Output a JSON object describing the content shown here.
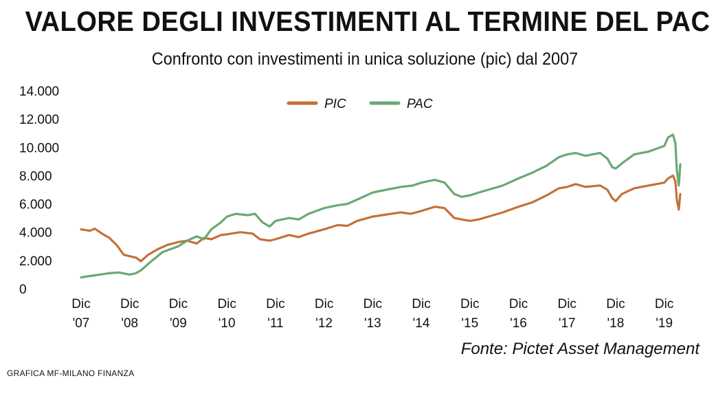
{
  "title": "VALORE DEGLI INVESTIMENTI AL TERMINE DEL PAC",
  "subtitle": "Confronto con investimenti in unica soluzione (pic) dal 2007",
  "source": "Fonte: Pictet Asset Management",
  "credit": "GRAFICA MF-MILANO FINANZA",
  "colors": {
    "PIC": "#c4703a",
    "PAC": "#6aa873"
  },
  "chart_data": {
    "type": "line",
    "title": "VALORE DEGLI INVESTIMENTI AL TERMINE DEL PAC",
    "subtitle": "Confronto con investimenti in unica soluzione (pic) dal 2007",
    "xlabel": "",
    "ylabel": "",
    "ylim": [
      0,
      14000
    ],
    "y_ticks": [
      0,
      2000,
      4000,
      6000,
      8000,
      10000,
      12000,
      14000
    ],
    "y_tick_labels": [
      "0",
      "2.000",
      "4.000",
      "6.000",
      "8.000",
      "10.000",
      "12.000",
      "14.000"
    ],
    "x_range": [
      2007.92,
      2020.25
    ],
    "x_ticks": [
      {
        "x": 2007.92,
        "label": [
          "Dic",
          "'07"
        ]
      },
      {
        "x": 2008.92,
        "label": [
          "Dic",
          "'08"
        ]
      },
      {
        "x": 2009.92,
        "label": [
          "Dic",
          "'09"
        ]
      },
      {
        "x": 2010.92,
        "label": [
          "Dic",
          "'10"
        ]
      },
      {
        "x": 2011.92,
        "label": [
          "Dic",
          "'11"
        ]
      },
      {
        "x": 2012.92,
        "label": [
          "Dic",
          "'12"
        ]
      },
      {
        "x": 2013.92,
        "label": [
          "Dic",
          "'13"
        ]
      },
      {
        "x": 2014.92,
        "label": [
          "Dic",
          "'14"
        ]
      },
      {
        "x": 2015.92,
        "label": [
          "Dic",
          "'15"
        ]
      },
      {
        "x": 2016.92,
        "label": [
          "Dic",
          "'16"
        ]
      },
      {
        "x": 2017.92,
        "label": [
          "Dic",
          "'17"
        ]
      },
      {
        "x": 2018.92,
        "label": [
          "Dic",
          "'18"
        ]
      },
      {
        "x": 2019.92,
        "label": [
          "Dic",
          "'19"
        ]
      }
    ],
    "legend": "top-center",
    "grid": false,
    "series": [
      {
        "name": "PIC",
        "color": "#c4703a",
        "points": [
          [
            2007.92,
            4200
          ],
          [
            2008.1,
            4100
          ],
          [
            2008.2,
            4250
          ],
          [
            2008.35,
            3900
          ],
          [
            2008.5,
            3600
          ],
          [
            2008.65,
            3100
          ],
          [
            2008.8,
            2400
          ],
          [
            2008.92,
            2300
          ],
          [
            2009.05,
            2200
          ],
          [
            2009.15,
            1950
          ],
          [
            2009.3,
            2400
          ],
          [
            2009.5,
            2800
          ],
          [
            2009.7,
            3100
          ],
          [
            2009.92,
            3300
          ],
          [
            2010.1,
            3400
          ],
          [
            2010.3,
            3200
          ],
          [
            2010.45,
            3600
          ],
          [
            2010.6,
            3500
          ],
          [
            2010.8,
            3800
          ],
          [
            2010.92,
            3850
          ],
          [
            2011.2,
            4000
          ],
          [
            2011.45,
            3900
          ],
          [
            2011.6,
            3500
          ],
          [
            2011.8,
            3400
          ],
          [
            2011.92,
            3500
          ],
          [
            2012.2,
            3800
          ],
          [
            2012.4,
            3650
          ],
          [
            2012.6,
            3900
          ],
          [
            2012.92,
            4200
          ],
          [
            2013.2,
            4500
          ],
          [
            2013.4,
            4450
          ],
          [
            2013.6,
            4800
          ],
          [
            2013.92,
            5100
          ],
          [
            2014.2,
            5250
          ],
          [
            2014.5,
            5400
          ],
          [
            2014.7,
            5300
          ],
          [
            2014.92,
            5500
          ],
          [
            2015.2,
            5800
          ],
          [
            2015.4,
            5700
          ],
          [
            2015.6,
            5000
          ],
          [
            2015.75,
            4900
          ],
          [
            2015.92,
            4800
          ],
          [
            2016.1,
            4900
          ],
          [
            2016.3,
            5100
          ],
          [
            2016.6,
            5400
          ],
          [
            2016.92,
            5800
          ],
          [
            2017.2,
            6100
          ],
          [
            2017.5,
            6600
          ],
          [
            2017.75,
            7100
          ],
          [
            2017.92,
            7200
          ],
          [
            2018.1,
            7400
          ],
          [
            2018.3,
            7200
          ],
          [
            2018.6,
            7300
          ],
          [
            2018.75,
            7000
          ],
          [
            2018.85,
            6400
          ],
          [
            2018.92,
            6200
          ],
          [
            2019.05,
            6700
          ],
          [
            2019.3,
            7100
          ],
          [
            2019.6,
            7300
          ],
          [
            2019.92,
            7500
          ],
          [
            2020.0,
            7800
          ],
          [
            2020.1,
            8000
          ],
          [
            2020.15,
            7600
          ],
          [
            2020.18,
            6300
          ],
          [
            2020.22,
            5600
          ],
          [
            2020.25,
            6700
          ]
        ]
      },
      {
        "name": "PAC",
        "color": "#6aa873",
        "points": [
          [
            2007.92,
            800
          ],
          [
            2008.1,
            900
          ],
          [
            2008.3,
            1000
          ],
          [
            2008.5,
            1100
          ],
          [
            2008.7,
            1150
          ],
          [
            2008.92,
            1000
          ],
          [
            2009.05,
            1100
          ],
          [
            2009.15,
            1300
          ],
          [
            2009.35,
            1900
          ],
          [
            2009.6,
            2600
          ],
          [
            2009.92,
            3000
          ],
          [
            2010.1,
            3400
          ],
          [
            2010.3,
            3700
          ],
          [
            2010.45,
            3500
          ],
          [
            2010.6,
            4200
          ],
          [
            2010.8,
            4700
          ],
          [
            2010.92,
            5100
          ],
          [
            2011.1,
            5300
          ],
          [
            2011.35,
            5200
          ],
          [
            2011.5,
            5300
          ],
          [
            2011.65,
            4700
          ],
          [
            2011.8,
            4400
          ],
          [
            2011.92,
            4800
          ],
          [
            2012.2,
            5000
          ],
          [
            2012.4,
            4900
          ],
          [
            2012.6,
            5300
          ],
          [
            2012.92,
            5700
          ],
          [
            2013.2,
            5900
          ],
          [
            2013.4,
            6000
          ],
          [
            2013.6,
            6300
          ],
          [
            2013.92,
            6800
          ],
          [
            2014.2,
            7000
          ],
          [
            2014.5,
            7200
          ],
          [
            2014.75,
            7300
          ],
          [
            2014.92,
            7500
          ],
          [
            2015.2,
            7700
          ],
          [
            2015.4,
            7500
          ],
          [
            2015.6,
            6700
          ],
          [
            2015.75,
            6500
          ],
          [
            2015.92,
            6600
          ],
          [
            2016.1,
            6800
          ],
          [
            2016.3,
            7000
          ],
          [
            2016.6,
            7300
          ],
          [
            2016.92,
            7800
          ],
          [
            2017.2,
            8200
          ],
          [
            2017.5,
            8700
          ],
          [
            2017.75,
            9300
          ],
          [
            2017.92,
            9500
          ],
          [
            2018.1,
            9600
          ],
          [
            2018.3,
            9400
          ],
          [
            2018.6,
            9600
          ],
          [
            2018.75,
            9200
          ],
          [
            2018.85,
            8600
          ],
          [
            2018.92,
            8500
          ],
          [
            2019.1,
            9000
          ],
          [
            2019.3,
            9500
          ],
          [
            2019.6,
            9700
          ],
          [
            2019.92,
            10100
          ],
          [
            2020.0,
            10700
          ],
          [
            2020.1,
            10900
          ],
          [
            2020.15,
            10300
          ],
          [
            2020.18,
            8400
          ],
          [
            2020.22,
            7300
          ],
          [
            2020.25,
            8800
          ]
        ]
      }
    ]
  }
}
